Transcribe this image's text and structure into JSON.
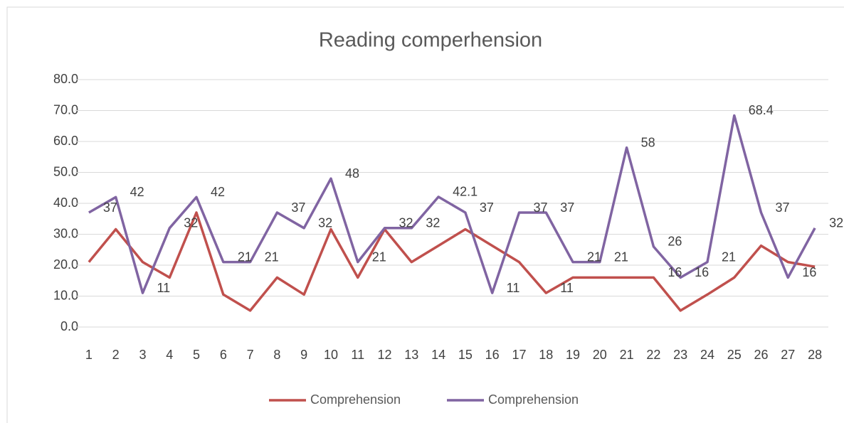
{
  "chart_data": {
    "type": "line",
    "title": "Reading comperhension",
    "categories": [
      1,
      2,
      3,
      4,
      5,
      6,
      7,
      8,
      9,
      10,
      11,
      12,
      13,
      14,
      15,
      16,
      17,
      18,
      19,
      20,
      21,
      22,
      23,
      24,
      25,
      26,
      27,
      28
    ],
    "series": [
      {
        "name": "Comprehension",
        "color": "#c0504d",
        "values": [
          21,
          31.6,
          21,
          16,
          37,
          10.5,
          5.3,
          16,
          10.5,
          31.6,
          16,
          31.6,
          21,
          26.3,
          31.6,
          26.3,
          21,
          11,
          16,
          16,
          16,
          16,
          5.3,
          10.5,
          16,
          26.3,
          21,
          19.5
        ],
        "value_labels": [
          null,
          null,
          null,
          null,
          null,
          null,
          null,
          null,
          null,
          null,
          null,
          null,
          null,
          null,
          null,
          null,
          null,
          "11",
          null,
          null,
          null,
          "16",
          null,
          null,
          null,
          null,
          null,
          null
        ]
      },
      {
        "name": "Comprehension",
        "color": "#8064a2",
        "values": [
          37,
          42,
          11,
          32,
          42,
          21,
          21,
          37,
          32,
          48,
          21,
          32,
          32,
          42.1,
          37,
          11,
          37,
          37,
          21,
          21,
          58,
          26,
          16,
          21,
          68.4,
          37,
          16,
          32
        ]
      }
    ],
    "ylim": [
      0,
      80
    ],
    "yticks": [
      {
        "value": 0,
        "label": "0.0"
      },
      {
        "value": 10,
        "label": "10.0"
      },
      {
        "value": 20,
        "label": "20.0"
      },
      {
        "value": 30,
        "label": "30.0"
      },
      {
        "value": 40,
        "label": "40.0"
      },
      {
        "value": 50,
        "label": "50.0"
      },
      {
        "value": 60,
        "label": "60.0"
      },
      {
        "value": 70,
        "label": "70.0"
      },
      {
        "value": 80,
        "label": "80.0"
      }
    ],
    "grid": true,
    "legend": "bottom"
  }
}
